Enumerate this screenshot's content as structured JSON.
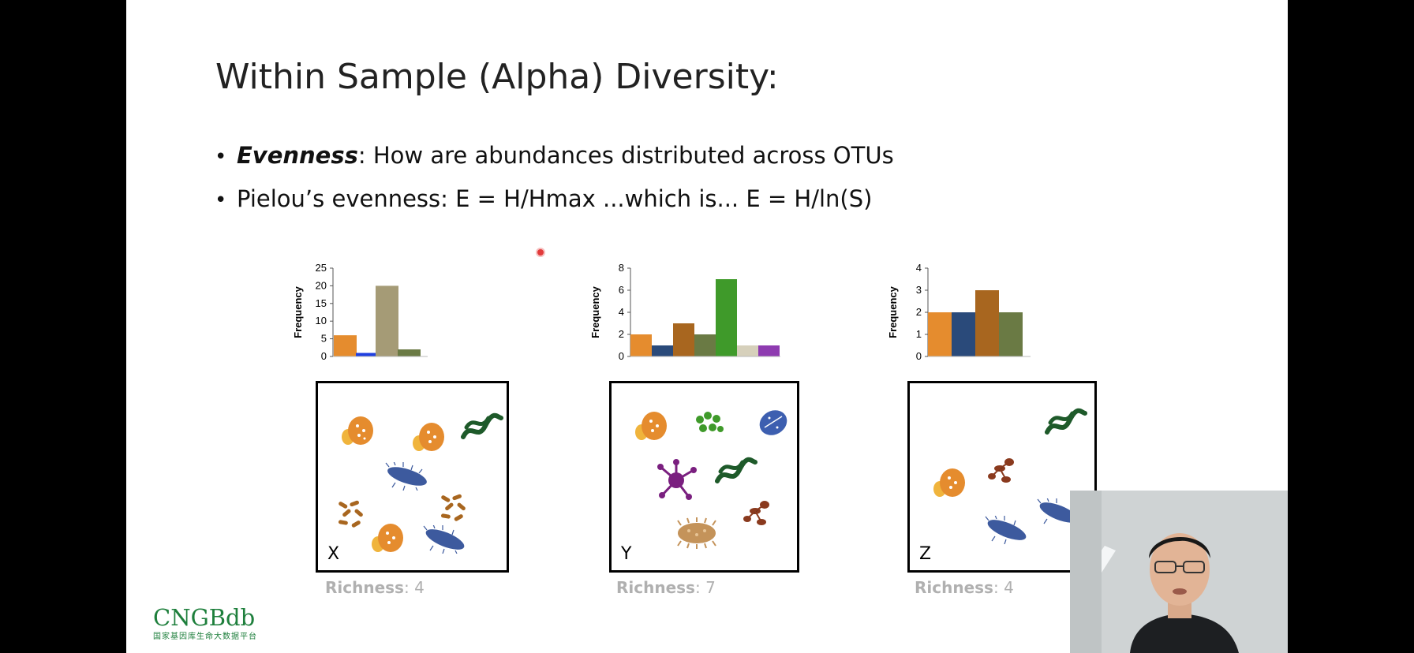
{
  "slide": {
    "title": "Within Sample (Alpha) Diversity:",
    "bullets": [
      {
        "bold_term": "Evenness",
        "rest": ": How are abundances distributed across OTUs"
      },
      {
        "bold_term": "",
        "rest": "Pielou’s evenness: E = H/Hmax ...which is... E = H/ln(S)"
      }
    ]
  },
  "samples": [
    {
      "letter": "X",
      "richness_label": "Richness",
      "richness_value": ": 4"
    },
    {
      "letter": "Y",
      "richness_label": "Richness",
      "richness_value": ": 7"
    },
    {
      "letter": "Z",
      "richness_label": "Richness",
      "richness_value": ": 4"
    }
  ],
  "chart_data": [
    {
      "type": "bar",
      "ylabel": "Frequency",
      "xlabel": "",
      "ylim": [
        0,
        25
      ],
      "yticks": [
        0,
        5,
        10,
        15,
        20,
        25
      ],
      "values": [
        6,
        1,
        20,
        2
      ],
      "colors": [
        "#e58c2e",
        "#1f3fe0",
        "#a59b76",
        "#6a7a44"
      ]
    },
    {
      "type": "bar",
      "ylabel": "Frequency",
      "xlabel": "",
      "ylim": [
        0,
        8
      ],
      "yticks": [
        0,
        2,
        4,
        6,
        8
      ],
      "values": [
        2,
        1,
        3,
        2,
        7,
        1,
        1
      ],
      "colors": [
        "#e58c2e",
        "#2a4a7a",
        "#a8661f",
        "#6a7a44",
        "#3f9a2a",
        "#d6d0bb",
        "#8e3bb0"
      ]
    },
    {
      "type": "bar",
      "ylabel": "Frequency",
      "xlabel": "",
      "ylim": [
        0,
        4
      ],
      "yticks": [
        0,
        1,
        2,
        3,
        4
      ],
      "values": [
        2,
        2,
        3,
        2
      ],
      "colors": [
        "#e58c2e",
        "#2a4a7a",
        "#a8661f",
        "#6a7a44"
      ]
    }
  ],
  "logo": {
    "main": "CNGBdb",
    "sub": "国家基因库生命大数据平台"
  },
  "icons": [
    "oval-cell-icon",
    "rod-cluster-icon",
    "ciliate-icon",
    "spirillum-icon",
    "coccus-cluster-icon",
    "star-microbe-icon",
    "budding-icon",
    "spiky-microbe-icon",
    "blue-cell-icon"
  ]
}
